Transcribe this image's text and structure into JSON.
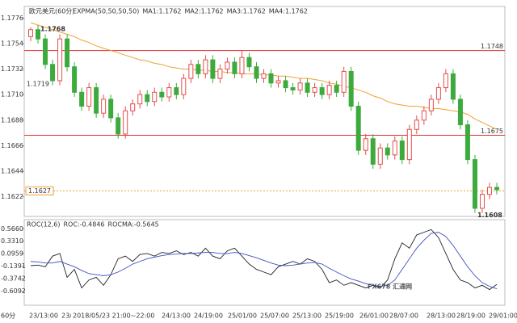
{
  "chart_data": [
    {
      "type": "candlestick",
      "title": "欧元美元(60分)",
      "indicator_header": [
        "EXPMA(50,50,50,50)",
        "MA1:1.1762",
        "MA2:1.1762",
        "MA3:1.1762",
        "MA4:1.1762"
      ],
      "indicator_colors": [
        "#333333",
        "#333333",
        "#3050d0",
        "#c030c0",
        "#f0a030"
      ],
      "ylim": [
        1.1605,
        1.1786
      ],
      "yticks": [
        1.1776,
        1.1754,
        1.1732,
        {
          "value": 1.171,
          "label": "1.1710"
        },
        1.1688,
        1.1666,
        1.1644,
        1.1622
      ],
      "up_color": "#e84c4c",
      "down_color": "#3caa3c",
      "candles": {
        "open": [
          1.176,
          1.1766,
          1.1758,
          1.1736,
          1.1722,
          1.1758,
          1.1734,
          1.1712,
          1.17,
          1.1716,
          1.1694,
          1.1706,
          1.169,
          1.1676,
          1.1696,
          1.1702,
          1.171,
          1.1704,
          1.1712,
          1.1708,
          1.1716,
          1.171,
          1.1724,
          1.1736,
          1.1728,
          1.174,
          1.1724,
          1.1732,
          1.1738,
          1.1728,
          1.1742,
          1.1734,
          1.1724,
          1.1728,
          1.172,
          1.1722,
          1.1716,
          1.1714,
          1.172,
          1.1712,
          1.1716,
          1.171,
          1.1718,
          1.1712,
          1.173,
          1.17,
          1.1662,
          1.1672,
          1.165,
          1.1664,
          1.1658,
          1.167,
          1.1654,
          1.168,
          1.1688,
          1.1696,
          1.1706,
          1.1716,
          1.1728,
          1.1706,
          1.1684,
          1.1654,
          1.1612,
          1.1624,
          1.163
        ],
        "high": [
          1.1768,
          1.177,
          1.1762,
          1.174,
          1.1762,
          1.1762,
          1.1738,
          1.1716,
          1.172,
          1.172,
          1.171,
          1.171,
          1.1694,
          1.17,
          1.1706,
          1.1714,
          1.1714,
          1.1716,
          1.1716,
          1.172,
          1.172,
          1.1728,
          1.174,
          1.174,
          1.1744,
          1.1744,
          1.1736,
          1.1742,
          1.1742,
          1.1748,
          1.1746,
          1.1738,
          1.1732,
          1.1732,
          1.1726,
          1.1726,
          1.172,
          1.1724,
          1.1724,
          1.172,
          1.172,
          1.1722,
          1.1722,
          1.1734,
          1.1734,
          1.1704,
          1.1676,
          1.1676,
          1.1668,
          1.1668,
          1.1674,
          1.1674,
          1.1684,
          1.1692,
          1.17,
          1.171,
          1.172,
          1.1732,
          1.1732,
          1.171,
          1.1688,
          1.1658,
          1.1628,
          1.1634,
          1.1634
        ],
        "low": [
          1.1756,
          1.1754,
          1.1732,
          1.1718,
          1.1718,
          1.173,
          1.1708,
          1.1696,
          1.1696,
          1.169,
          1.169,
          1.1686,
          1.1672,
          1.1672,
          1.1692,
          1.1698,
          1.17,
          1.17,
          1.1704,
          1.1704,
          1.1706,
          1.1706,
          1.172,
          1.1724,
          1.1724,
          1.172,
          1.172,
          1.1728,
          1.1724,
          1.1724,
          1.173,
          1.172,
          1.172,
          1.1716,
          1.1716,
          1.1712,
          1.171,
          1.171,
          1.1708,
          1.1708,
          1.1706,
          1.1706,
          1.1708,
          1.1708,
          1.1696,
          1.1658,
          1.1658,
          1.1646,
          1.1646,
          1.1654,
          1.1654,
          1.165,
          1.165,
          1.1676,
          1.1684,
          1.1692,
          1.1702,
          1.1712,
          1.1702,
          1.168,
          1.165,
          1.1608,
          1.1608,
          1.162,
          1.1624
        ],
        "close": [
          1.1766,
          1.1758,
          1.1736,
          1.1722,
          1.1758,
          1.1734,
          1.1712,
          1.17,
          1.1716,
          1.1694,
          1.1706,
          1.169,
          1.1676,
          1.1696,
          1.1702,
          1.171,
          1.1704,
          1.1712,
          1.1708,
          1.1716,
          1.171,
          1.1724,
          1.1736,
          1.1728,
          1.174,
          1.1724,
          1.1732,
          1.1738,
          1.1728,
          1.1742,
          1.1734,
          1.1724,
          1.1728,
          1.172,
          1.1722,
          1.1716,
          1.1714,
          1.172,
          1.1712,
          1.1716,
          1.171,
          1.1718,
          1.1712,
          1.173,
          1.17,
          1.1662,
          1.1672,
          1.165,
          1.1664,
          1.1658,
          1.167,
          1.1654,
          1.168,
          1.1688,
          1.1696,
          1.1706,
          1.1716,
          1.1728,
          1.1706,
          1.1684,
          1.1654,
          1.1612,
          1.1624,
          1.163,
          1.1628
        ]
      },
      "expma": {
        "color": "#f0a030",
        "values": [
          1.1772,
          1.177,
          1.1768,
          1.1766,
          1.1764,
          1.1762,
          1.176,
          1.1757,
          1.1755,
          1.1752,
          1.175,
          1.1748,
          1.1746,
          1.1744,
          1.1742,
          1.174,
          1.1739,
          1.1737,
          1.1736,
          1.1734,
          1.1733,
          1.1732,
          1.1732,
          1.1731,
          1.1731,
          1.173,
          1.173,
          1.1729,
          1.1729,
          1.1728,
          1.1728,
          1.1728,
          1.1727,
          1.1727,
          1.1726,
          1.1726,
          1.1725,
          1.1724,
          1.1724,
          1.1723,
          1.1722,
          1.172,
          1.1719,
          1.1717,
          1.1716,
          1.1714,
          1.1712,
          1.1709,
          1.1707,
          1.1704,
          1.1702,
          1.1701,
          1.17,
          1.17,
          1.1699,
          1.1698,
          1.1698,
          1.1697,
          1.1696,
          1.1695,
          1.1693,
          1.1689,
          1.1686,
          1.1683,
          1.168
        ]
      },
      "hlines": [
        {
          "value": 1.1748,
          "label": "1.1748",
          "color": "#e03030",
          "dashed": false
        },
        {
          "value": 1.1675,
          "label": "1.1675",
          "color": "#e03030",
          "dashed": false
        },
        {
          "value": 1.1627,
          "label": "1.1627",
          "color": "#f0a030",
          "dashed": true
        }
      ],
      "high_label": {
        "value": 1.1768,
        "label": "1.1768"
      },
      "low_label": {
        "value": 1.1608,
        "label": "1.1608"
      },
      "expma_label": {
        "value": 1.1719,
        "label": "1.1719"
      }
    },
    {
      "type": "line",
      "header": [
        "ROC(12,6)",
        "ROC:-0.4846",
        "ROCMA:-0.5645"
      ],
      "header_colors": [
        "#333333",
        "#333333",
        "#3050d0"
      ],
      "ylim": [
        -0.876,
        0.738
      ],
      "yticks": [
        {
          "value": 0.566,
          "label": "0.5660"
        },
        {
          "value": 0.331,
          "label": "0.3310"
        },
        0.0959,
        -0.1391,
        -0.3742,
        -0.6092
      ],
      "series": [
        {
          "color": "#222222",
          "values": [
            -0.13,
            -0.12,
            -0.15,
            0.05,
            0.1,
            -0.35,
            -0.2,
            -0.55,
            -0.4,
            -0.35,
            -0.5,
            -0.3,
            0,
            0.05,
            -0.05,
            0.08,
            0.1,
            0.05,
            0.12,
            0.1,
            0.15,
            0.08,
            0.12,
            0.05,
            0.2,
            0.05,
            0,
            0.15,
            0.2,
            0.05,
            -0.1,
            -0.2,
            -0.25,
            -0.3,
            -0.15,
            -0.1,
            -0.05,
            -0.1,
            0,
            -0.05,
            -0.2,
            -0.45,
            -0.4,
            -0.5,
            -0.45,
            -0.5,
            -0.55,
            -0.5,
            -0.55,
            -0.4,
            0,
            0.3,
            0.2,
            0.45,
            0.5,
            0.55,
            0.4,
            0.1,
            -0.2,
            -0.4,
            -0.45,
            -0.55,
            -0.5,
            -0.58,
            -0.4846
          ]
        },
        {
          "color": "#4050c0",
          "values": [
            -0.05,
            -0.06,
            -0.08,
            -0.08,
            -0.05,
            -0.1,
            -0.15,
            -0.22,
            -0.28,
            -0.3,
            -0.32,
            -0.3,
            -0.25,
            -0.18,
            -0.1,
            -0.05,
            0,
            0.03,
            0.06,
            0.08,
            0.09,
            0.1,
            0.1,
            0.11,
            0.12,
            0.12,
            0.1,
            0.1,
            0.12,
            0.1,
            0.06,
            0.02,
            -0.03,
            -0.08,
            -0.12,
            -0.13,
            -0.12,
            -0.1,
            -0.08,
            -0.07,
            -0.1,
            -0.18,
            -0.25,
            -0.32,
            -0.38,
            -0.42,
            -0.47,
            -0.5,
            -0.52,
            -0.5,
            -0.4,
            -0.2,
            0,
            0.2,
            0.35,
            0.48,
            0.5,
            0.42,
            0.25,
            0.05,
            -0.15,
            -0.32,
            -0.45,
            -0.52,
            -0.5645
          ]
        }
      ]
    }
  ],
  "x_labels": [
    "23/13:00",
    "23/1",
    "24/13:00",
    "24/19:00",
    "25/01/00",
    "25/07:00",
    "25/13:00",
    "25/19:00",
    "26/01:00",
    "28/07:00",
    "28/13:00",
    "28/19:00",
    "29/01:00"
  ],
  "tooltip_time": "2018/05/23 21:00~22:00",
  "period": "60分",
  "watermark": "FX678 汇通网"
}
